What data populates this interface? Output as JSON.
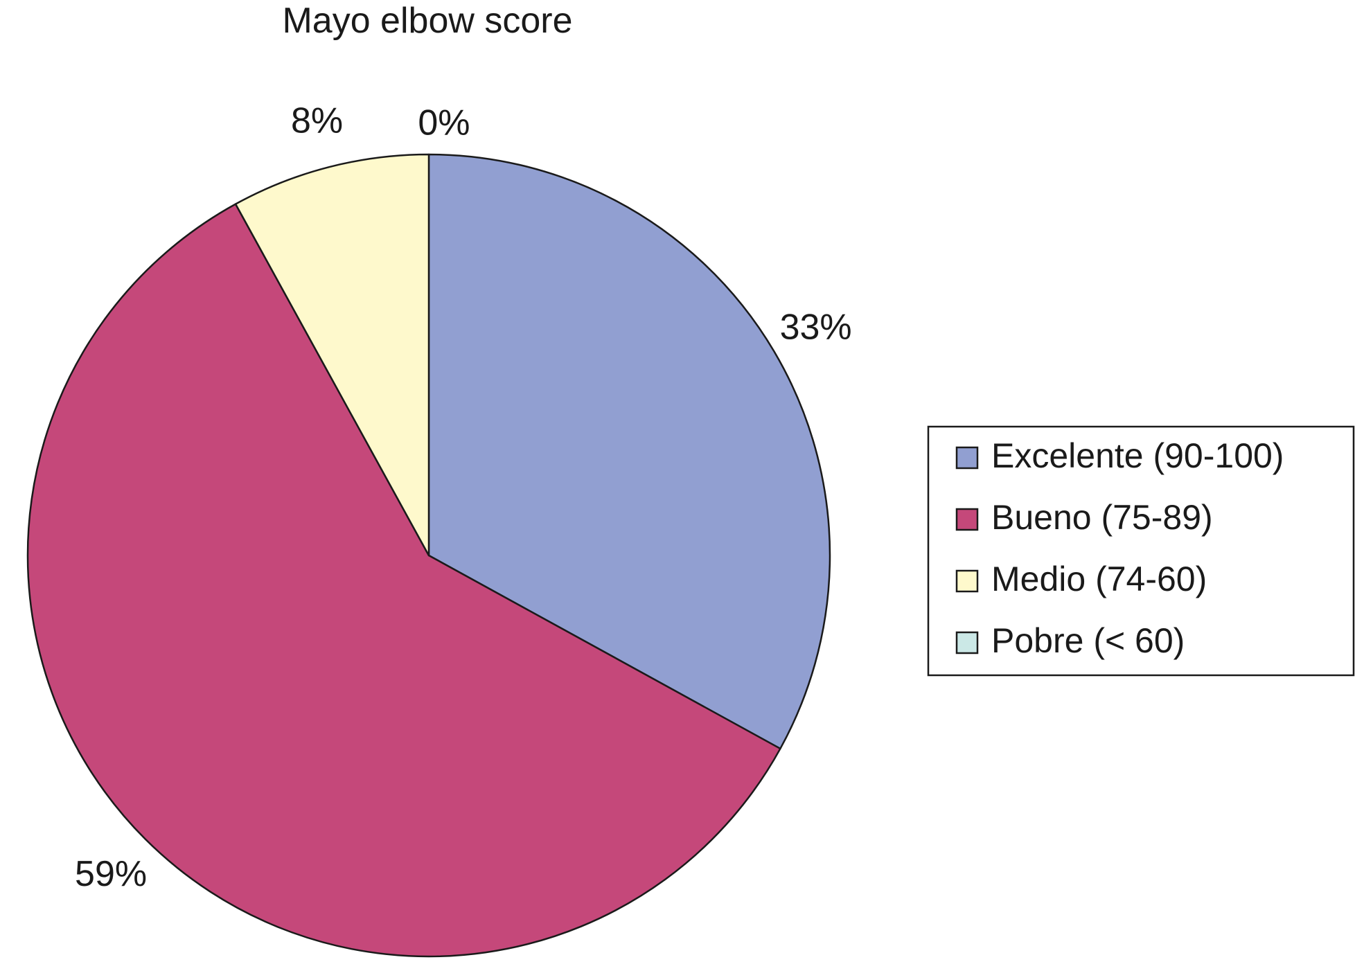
{
  "chart_data": {
    "type": "pie",
    "title": "Mayo elbow score",
    "categories": [
      "Excelente (90-100)",
      "Bueno (75-89)",
      "Medio (74-60)",
      "Pobre (< 60)"
    ],
    "values": [
      33,
      59,
      8,
      0
    ],
    "labels": [
      "33%",
      "59%",
      "8%",
      "0%"
    ],
    "colors": [
      "#919fd1",
      "#c5487a",
      "#fef9cc",
      "#cbe8e6"
    ],
    "legend_placement": "right",
    "start_angle": "12 o'clock",
    "direction": "clockwise"
  }
}
